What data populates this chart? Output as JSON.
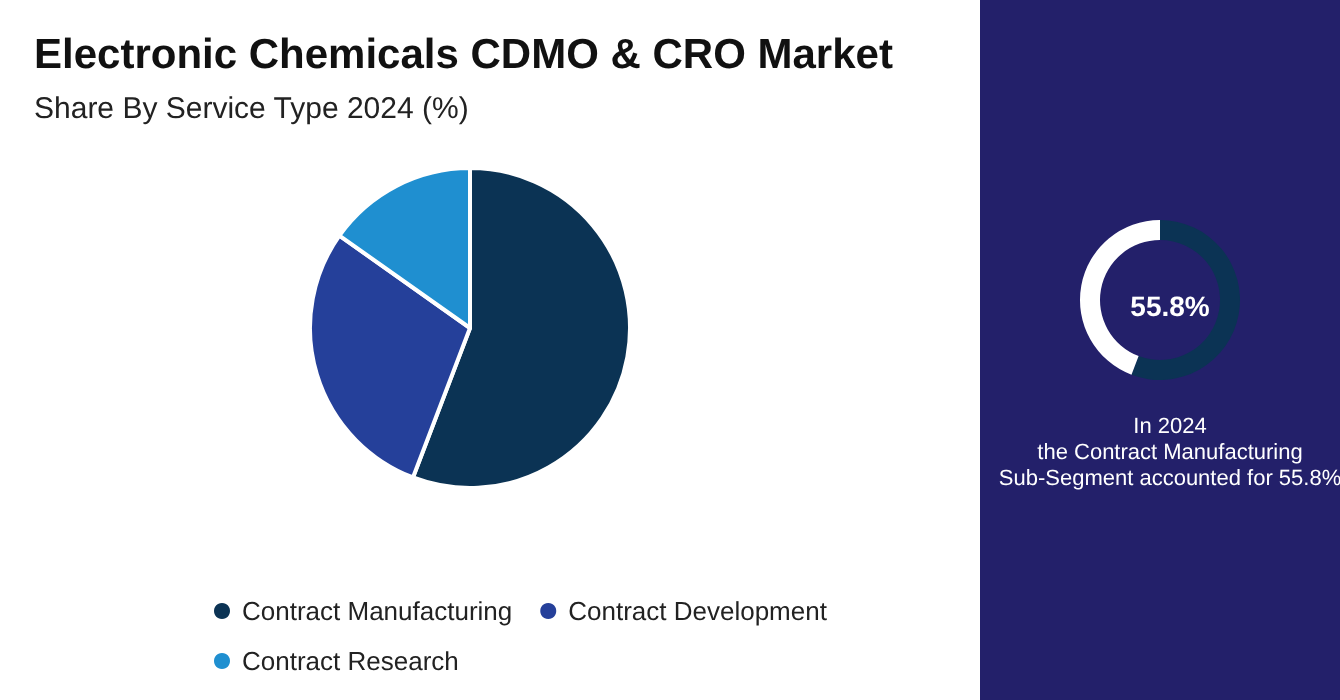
{
  "chart_data": [
    {
      "type": "pie",
      "title": "Electronic Chemicals CDMO & CRO Market",
      "subtitle": "Share By Service Type 2024 (%)",
      "categories": [
        "Contract Manufacturing",
        "Contract Development",
        "Contract Research"
      ],
      "values": [
        55.8,
        29.0,
        15.2
      ],
      "colors": [
        "#0b3354",
        "#25409a",
        "#1f8fd0"
      ],
      "legend": "bottom"
    },
    {
      "type": "donut",
      "categories": [
        null,
        null
      ],
      "values": [
        55.8,
        44.2
      ],
      "colors": [
        "#0b3354",
        "#ffffff"
      ],
      "annotations": [
        "55.8%",
        "In 2024\nthe Contract Manufacturing\nSub-Segment accounted for 55.8%"
      ]
    }
  ]
}
